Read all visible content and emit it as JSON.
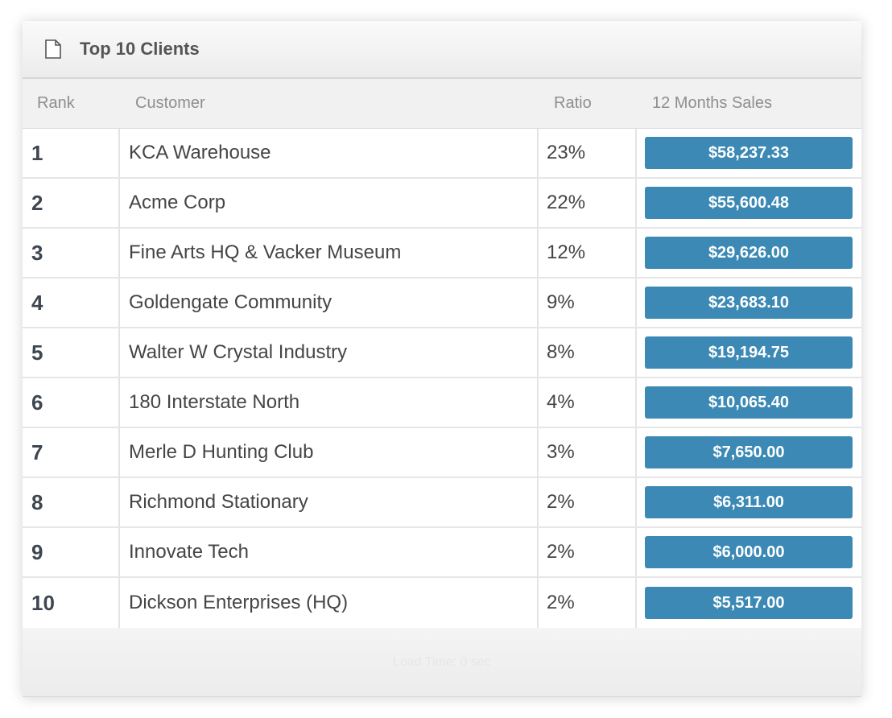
{
  "panel": {
    "title": "Top 10 Clients",
    "icon": "document-icon"
  },
  "columns": {
    "rank": "Rank",
    "customer": "Customer",
    "ratio": "Ratio",
    "sales": "12 Months Sales"
  },
  "rows": [
    {
      "rank": "1",
      "customer": "KCA Warehouse",
      "ratio": "23%",
      "sales": "$58,237.33"
    },
    {
      "rank": "2",
      "customer": "Acme Corp",
      "ratio": "22%",
      "sales": "$55,600.48"
    },
    {
      "rank": "3",
      "customer": "Fine Arts HQ & Vacker Museum",
      "ratio": "12%",
      "sales": "$29,626.00"
    },
    {
      "rank": "4",
      "customer": "Goldengate Community",
      "ratio": "9%",
      "sales": "$23,683.10"
    },
    {
      "rank": "5",
      "customer": "Walter W Crystal Industry",
      "ratio": "8%",
      "sales": "$19,194.75"
    },
    {
      "rank": "6",
      "customer": "180 Interstate North",
      "ratio": "4%",
      "sales": "$10,065.40"
    },
    {
      "rank": "7",
      "customer": "Merle D Hunting Club",
      "ratio": "3%",
      "sales": "$7,650.00"
    },
    {
      "rank": "8",
      "customer": "Richmond Stationary",
      "ratio": "2%",
      "sales": "$6,311.00"
    },
    {
      "rank": "9",
      "customer": "Innovate Tech",
      "ratio": "2%",
      "sales": "$6,000.00"
    },
    {
      "rank": "10",
      "customer": "Dickson Enterprises (HQ)",
      "ratio": "2%",
      "sales": "$5,517.00"
    }
  ],
  "footer": {
    "load_time": "Load Time: 0 sec"
  },
  "colors": {
    "badge": "#3b89b4",
    "header_text": "#555555"
  }
}
